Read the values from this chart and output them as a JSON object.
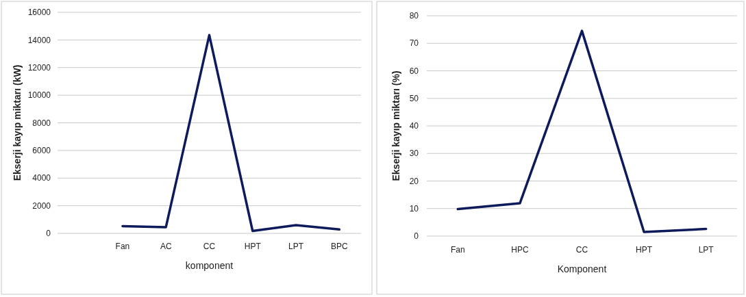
{
  "chart_data": [
    {
      "type": "line",
      "xlabel": "komponent",
      "ylabel": "Ekserji kayıp miktarı (kW)",
      "categories": [
        null,
        "Fan",
        "AC",
        "CC",
        "HPT",
        "LPT",
        "BPC"
      ],
      "series": [
        {
          "color": "#0d1a5c",
          "values": [
            null,
            520,
            450,
            14350,
            170,
            590,
            280
          ]
        }
      ],
      "ylim": [
        0,
        16000
      ],
      "yticks": [
        0,
        2000,
        4000,
        6000,
        8000,
        10000,
        12000,
        14000,
        16000
      ],
      "grid": "y",
      "marker": "none",
      "line_style": "solid"
    },
    {
      "type": "line",
      "xlabel": "Komponent",
      "ylabel": "Ekserji kayıp miktarı (%)",
      "categories": [
        "Fan",
        "HPC",
        "CC",
        "HPT",
        "LPT"
      ],
      "series": [
        {
          "color": "#0d1a5c",
          "values": [
            9.8,
            11.9,
            74.5,
            1.5,
            2.6
          ]
        }
      ],
      "ylim": [
        0,
        80
      ],
      "yticks": [
        0,
        10,
        20,
        30,
        40,
        50,
        60,
        70,
        80
      ],
      "grid": "y",
      "marker": "none",
      "line_style": "solid"
    }
  ]
}
